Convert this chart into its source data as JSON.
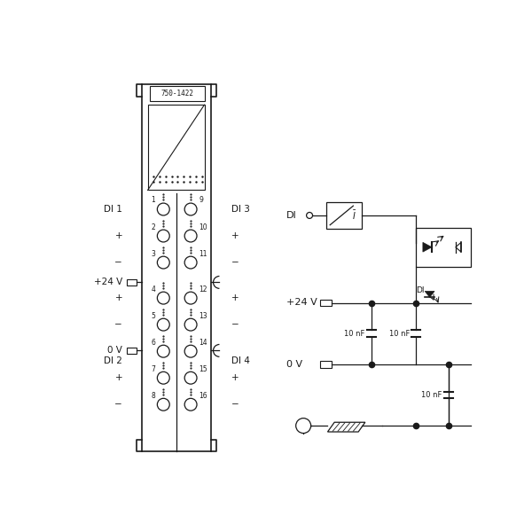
{
  "bg_color": "#ffffff",
  "line_color": "#1a1a1a",
  "text_color": "#1a1a1a",
  "module_label": "750-1422",
  "pin_numbers_left": [
    1,
    2,
    3,
    4,
    5,
    6,
    7,
    8
  ],
  "pin_numbers_right": [
    9,
    10,
    11,
    12,
    13,
    14,
    15,
    16
  ],
  "left_labels_top": [
    "DI 1",
    "+",
    "−"
  ],
  "left_labels_mid": [
    "+24 V",
    "+",
    "−",
    "0 V",
    "DI 2"
  ],
  "left_labels_bot": [
    "+",
    "−"
  ],
  "right_labels": [
    "DI 3",
    "+",
    "−",
    "+",
    "−",
    "DI 4",
    "+",
    "−"
  ],
  "cap_label": "10 nF"
}
